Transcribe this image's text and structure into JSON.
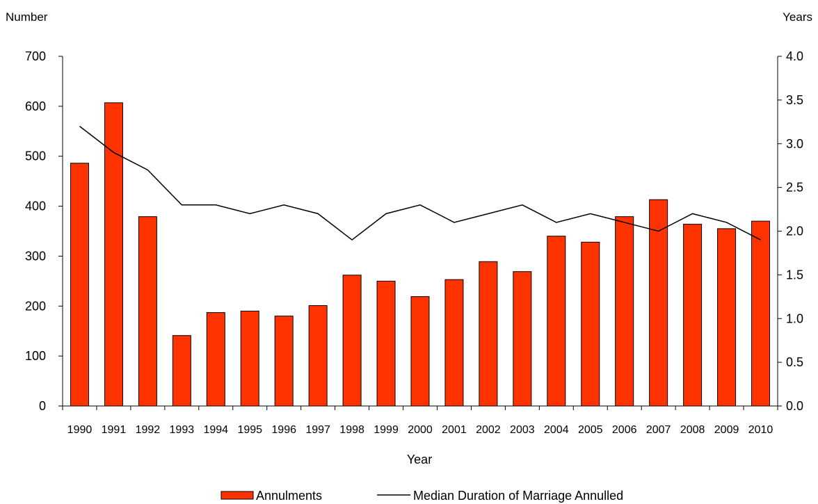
{
  "chart_data": {
    "type": "bar",
    "title": "",
    "y_left_label": "Number",
    "y_right_label": "Years",
    "xlabel": "Year",
    "categories": [
      "1990",
      "1991",
      "1992",
      "1993",
      "1994",
      "1995",
      "1996",
      "1997",
      "1998",
      "1999",
      "2000",
      "2001",
      "2002",
      "2003",
      "2004",
      "2005",
      "2006",
      "2007",
      "2008",
      "2009",
      "2010"
    ],
    "y_left_range": [
      0,
      700
    ],
    "y_left_ticks": [
      "0",
      "100",
      "200",
      "300",
      "400",
      "500",
      "600",
      "700"
    ],
    "y_right_range": [
      0,
      4.0
    ],
    "y_right_ticks": [
      "0.0",
      "0.5",
      "1.0",
      "1.5",
      "2.0",
      "2.5",
      "3.0",
      "3.5",
      "4.0"
    ],
    "grid": false,
    "legend_position": "bottom",
    "series": [
      {
        "name": "Annulments",
        "type": "bar",
        "axis": "left",
        "color": "#FF3300",
        "values": [
          486,
          607,
          379,
          141,
          187,
          190,
          180,
          201,
          262,
          250,
          219,
          253,
          289,
          269,
          340,
          328,
          379,
          413,
          364,
          355,
          370
        ]
      },
      {
        "name": "Median Duration of Marriage Annulled",
        "type": "line",
        "axis": "right",
        "color": "#000000",
        "values": [
          3.2,
          2.9,
          2.7,
          2.3,
          2.3,
          2.2,
          2.3,
          2.2,
          1.9,
          2.2,
          2.3,
          2.1,
          2.2,
          2.3,
          2.1,
          2.2,
          2.1,
          2.0,
          2.2,
          2.1,
          1.9
        ]
      }
    ]
  }
}
